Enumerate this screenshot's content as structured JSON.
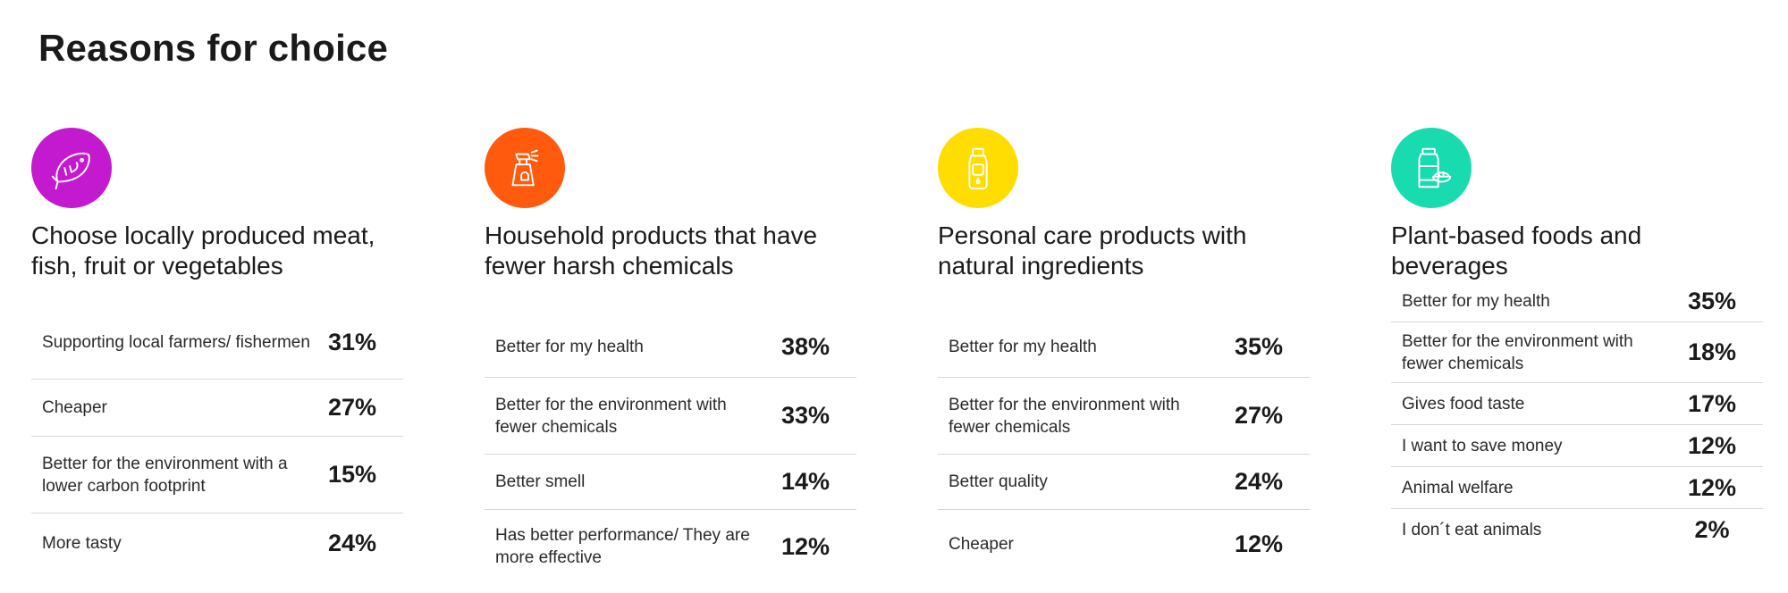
{
  "page": {
    "title": "Reasons for choice"
  },
  "colors": {
    "panel1": "#c41acf",
    "panel2": "#ff5a0d",
    "panel3": "#ffdd00",
    "panel4": "#19dbb0"
  },
  "chart_data": [
    {
      "type": "table",
      "title": "Choose locally produced meat, fish, fruit or vegetables",
      "icon": "fish-icon",
      "categories": [
        "Supporting local farmers/ fishermen",
        "Cheaper",
        "Better for the environment with a lower carbon footprint",
        "More tasty"
      ],
      "values": [
        "31%",
        "27%",
        "15%",
        "24%"
      ]
    },
    {
      "type": "table",
      "title": "Household products that have fewer harsh chemicals",
      "icon": "spray-bottle-icon",
      "categories": [
        "Better for my health",
        "Better for the environment with fewer chemicals",
        "Better smell",
        "Has better performance/ They are more effective"
      ],
      "values": [
        "38%",
        "33%",
        "14%",
        "12%"
      ]
    },
    {
      "type": "table",
      "title": "Personal care products with natural ingredients",
      "icon": "lotion-bottle-icon",
      "categories": [
        "Better for my health",
        "Better for the environment with fewer chemicals",
        "Better quality",
        "Cheaper"
      ],
      "values": [
        "35%",
        "27%",
        "24%",
        "12%"
      ]
    },
    {
      "type": "table",
      "title": "Plant-based foods and beverages",
      "icon": "jar-bowl-icon",
      "categories": [
        "Better for my health",
        "Better for the environment with fewer chemicals",
        "Gives food taste",
        "I want to save money",
        "Animal welfare",
        "I don´t eat animals"
      ],
      "values": [
        "35%",
        "18%",
        "17%",
        "12%",
        "12%",
        "2%"
      ]
    }
  ]
}
